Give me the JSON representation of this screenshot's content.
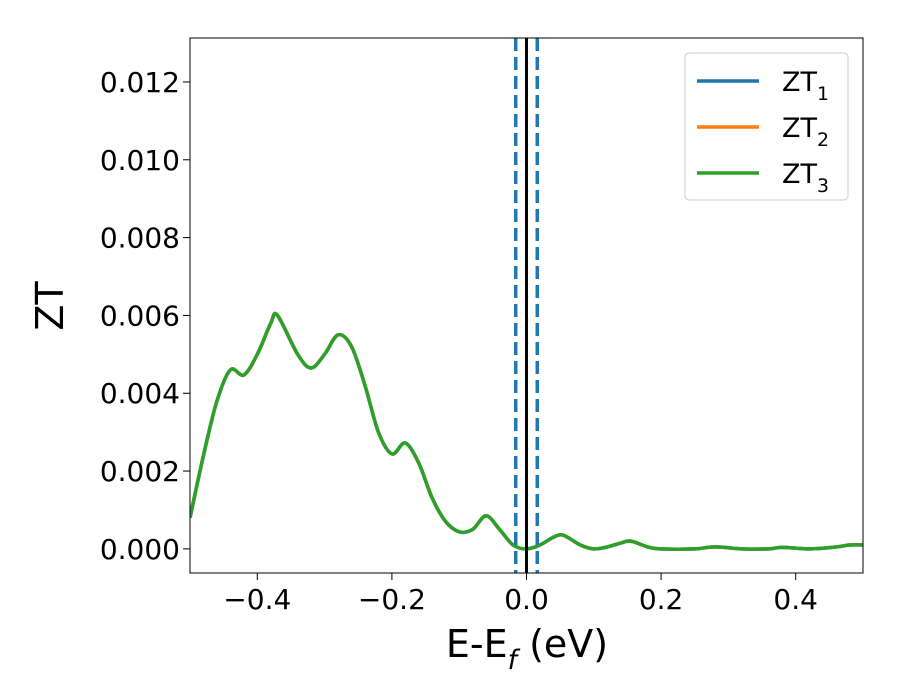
{
  "chart_data": {
    "type": "line",
    "xlabel": "E-Ef (eV)",
    "ylabel": "ZT",
    "x": [
      -0.5,
      -0.48,
      -0.46,
      -0.44,
      -0.42,
      -0.4,
      -0.38,
      -0.37,
      -0.34,
      -0.32,
      -0.3,
      -0.28,
      -0.26,
      -0.24,
      -0.22,
      -0.2,
      -0.18,
      -0.16,
      -0.14,
      -0.12,
      -0.1,
      -0.08,
      -0.06,
      -0.04,
      -0.02,
      0.0,
      0.02,
      0.04,
      0.055,
      0.08,
      0.1,
      0.12,
      0.14,
      0.155,
      0.18,
      0.2,
      0.25,
      0.28,
      0.32,
      0.36,
      0.38,
      0.42,
      0.46,
      0.48,
      0.5
    ],
    "series": [
      {
        "name": "ZT1",
        "color": "#1f77b4",
        "values": [
          0.0008,
          0.0024,
          0.0038,
          0.0046,
          0.00447,
          0.005,
          0.0058,
          0.006,
          0.005,
          0.00465,
          0.005,
          0.0055,
          0.0052,
          0.0042,
          0.003,
          0.00244,
          0.00272,
          0.0022,
          0.0013,
          0.0007,
          0.00044,
          0.0005,
          0.00085,
          0.0005,
          0.0001,
          0.0,
          0.0001,
          0.0003,
          0.00035,
          0.0001,
          0.0,
          5e-05,
          0.00015,
          0.0002,
          5e-05,
          0.0,
          0.0,
          5e-05,
          0.0,
          0.0,
          4e-05,
          0.0,
          5e-05,
          0.0001,
          0.0001
        ]
      },
      {
        "name": "ZT2",
        "color": "#ff7f0e",
        "values": [
          0.0008,
          0.0024,
          0.0038,
          0.0046,
          0.00447,
          0.005,
          0.0058,
          0.006,
          0.005,
          0.00465,
          0.005,
          0.0055,
          0.0052,
          0.0042,
          0.003,
          0.00244,
          0.00272,
          0.0022,
          0.0013,
          0.0007,
          0.00044,
          0.0005,
          0.00085,
          0.0005,
          0.0001,
          0.0,
          0.0001,
          0.0003,
          0.00035,
          0.0001,
          0.0,
          5e-05,
          0.00015,
          0.0002,
          5e-05,
          0.0,
          0.0,
          5e-05,
          0.0,
          0.0,
          4e-05,
          0.0,
          5e-05,
          0.0001,
          0.0001
        ]
      },
      {
        "name": "ZT3",
        "color": "#2ca02c",
        "values": [
          0.0008,
          0.0024,
          0.0038,
          0.0046,
          0.00447,
          0.005,
          0.0058,
          0.006,
          0.005,
          0.00465,
          0.005,
          0.0055,
          0.0052,
          0.0042,
          0.003,
          0.00244,
          0.00272,
          0.0022,
          0.0013,
          0.0007,
          0.00044,
          0.0005,
          0.00085,
          0.0005,
          0.0001,
          0.0,
          0.0001,
          0.0003,
          0.00035,
          0.0001,
          0.0,
          5e-05,
          0.00015,
          0.0002,
          5e-05,
          0.0,
          0.0,
          5e-05,
          0.0,
          0.0,
          4e-05,
          0.0,
          5e-05,
          0.0001,
          0.0001
        ]
      }
    ],
    "vlines": [
      {
        "x": -0.016,
        "color": "#1f77b4",
        "style": "dashed"
      },
      {
        "x": 0.016,
        "color": "#1f77b4",
        "style": "dashed"
      },
      {
        "x": 0,
        "color": "#000000",
        "style": "solid"
      }
    ],
    "xlim": [
      -0.5,
      0.5
    ],
    "ylim": [
      -0.00062,
      0.01313
    ],
    "xticks": [
      {
        "value": -0.4,
        "label": "−0.4"
      },
      {
        "value": -0.2,
        "label": "−0.2"
      },
      {
        "value": 0,
        "label": "0.0"
      },
      0.2,
      0.4
    ],
    "yticks": [
      {
        "value": 0,
        "label": "0.000"
      },
      {
        "value": 0.002,
        "label": "0.002"
      },
      {
        "value": 0.004,
        "label": "0.004"
      },
      {
        "value": 0.006,
        "label": "0.006"
      },
      {
        "value": 0.008,
        "label": "0.008"
      },
      {
        "value": 0.01,
        "label": "0.010"
      },
      {
        "value": 0.012,
        "label": "0.012"
      }
    ],
    "grid": false,
    "legend": "upper right"
  }
}
